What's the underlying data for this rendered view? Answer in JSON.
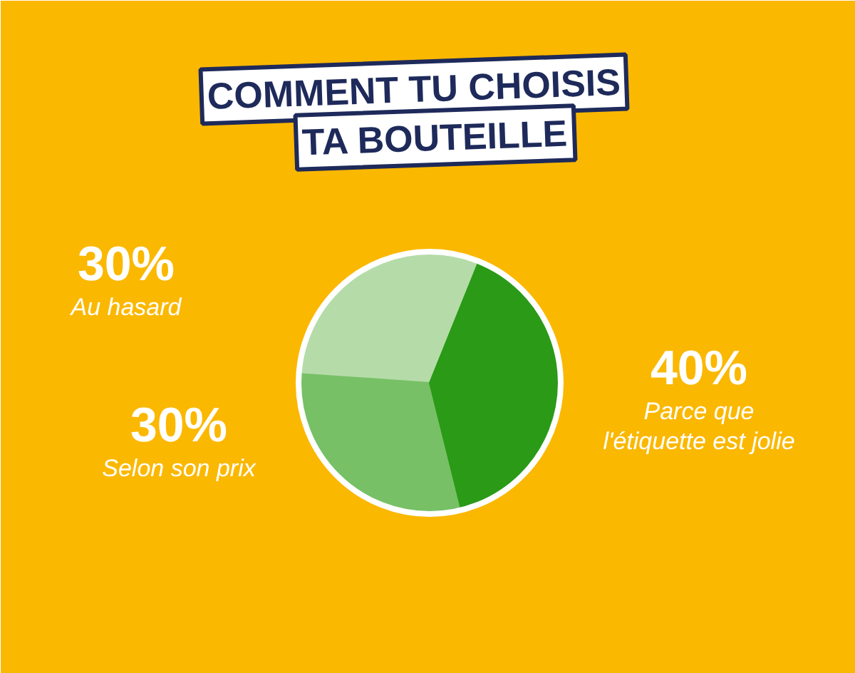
{
  "chart_data": {
    "type": "pie",
    "title": "COMMENT TU CHOISIS\nTA BOUTEILLE",
    "categories": [
      "Au hasard",
      "Selon son prix",
      "Parce que\nl'étiquette est jolie"
    ],
    "values": [
      30,
      30,
      40
    ],
    "value_labels": [
      "30%",
      "30%",
      "40%"
    ],
    "colors": [
      "#b5dca8",
      "#77c066",
      "#2a9a17"
    ]
  }
}
